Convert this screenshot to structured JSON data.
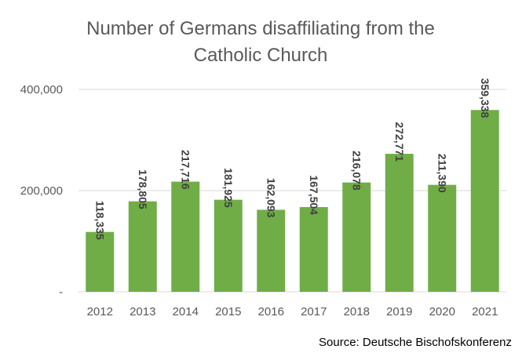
{
  "chart_data": {
    "type": "bar",
    "title_lines": [
      "Number of Germans disaffiliating from the",
      "Catholic Church"
    ],
    "categories": [
      "2012",
      "2013",
      "2014",
      "2015",
      "2016",
      "2017",
      "2018",
      "2019",
      "2020",
      "2021"
    ],
    "values": [
      118335,
      178805,
      217716,
      181925,
      162093,
      167504,
      216078,
      272771,
      211390,
      359338
    ],
    "data_labels": [
      "118,335",
      "178,805",
      "217,716",
      "181,925",
      "162,093",
      "167,504",
      "216,078",
      "272,771",
      "211,390",
      "359,338"
    ],
    "ylim": [
      0,
      400000
    ],
    "y_ticks": [
      {
        "value": 0,
        "label": "-"
      },
      {
        "value": 200000,
        "label": "200,000"
      },
      {
        "value": 400000,
        "label": "400,000"
      }
    ],
    "grid": true,
    "legend": "none",
    "bar_color": "#70ad47",
    "gridline_color": "#d9d9d9",
    "source": "Source: Deutsche Bischofskonferenz"
  }
}
